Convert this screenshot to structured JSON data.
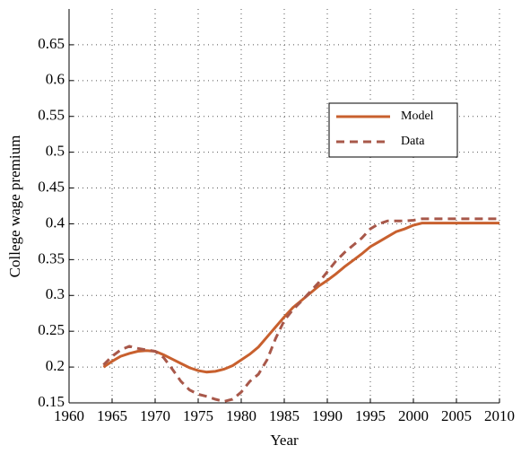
{
  "chart_data": {
    "type": "line",
    "x_label": "Year",
    "y_label": "College wage premium",
    "x": [
      1964,
      1965,
      1966,
      1967,
      1968,
      1969,
      1970,
      1971,
      1972,
      1973,
      1974,
      1975,
      1976,
      1977,
      1978,
      1979,
      1980,
      1981,
      1982,
      1983,
      1984,
      1985,
      1986,
      1987,
      1988,
      1989,
      1990,
      1991,
      1992,
      1993,
      1994,
      1995,
      1996,
      1997,
      1998,
      1999,
      2000,
      2001,
      2002,
      2003,
      2004,
      2005,
      2006,
      2007,
      2008,
      2009,
      2010
    ],
    "series": [
      {
        "name": "Model",
        "color": "#c8602e",
        "line_style": "solid",
        "values": [
          0.2,
          0.208,
          0.215,
          0.219,
          0.222,
          0.223,
          0.222,
          0.217,
          0.211,
          0.205,
          0.199,
          0.195,
          0.193,
          0.194,
          0.197,
          0.202,
          0.21,
          0.218,
          0.228,
          0.242,
          0.256,
          0.27,
          0.283,
          0.293,
          0.303,
          0.313,
          0.321,
          0.33,
          0.34,
          0.349,
          0.358,
          0.368,
          0.375,
          0.382,
          0.389,
          0.393,
          0.398,
          0.401,
          0.401,
          0.401,
          0.401,
          0.401,
          0.401,
          0.401,
          0.401,
          0.401,
          0.401
        ]
      },
      {
        "name": "Data",
        "color": "#a8584a",
        "line_style": "dashed",
        "values": [
          0.203,
          0.215,
          0.224,
          0.229,
          0.226,
          0.224,
          0.222,
          0.213,
          0.197,
          0.18,
          0.168,
          0.162,
          0.159,
          0.155,
          0.152,
          0.155,
          0.165,
          0.18,
          0.19,
          0.21,
          0.24,
          0.265,
          0.28,
          0.292,
          0.305,
          0.318,
          0.333,
          0.348,
          0.36,
          0.37,
          0.38,
          0.393,
          0.4,
          0.404,
          0.404,
          0.404,
          0.405,
          0.407,
          0.407,
          0.407,
          0.407,
          0.407,
          0.407,
          0.407,
          0.407,
          0.407,
          0.407
        ]
      }
    ],
    "xlim": [
      1960,
      2010
    ],
    "xticks": [
      1960,
      1965,
      1970,
      1975,
      1980,
      1985,
      1990,
      1995,
      2000,
      2005,
      2010
    ],
    "ylim": [
      0.15,
      0.7
    ],
    "yticks": [
      0.15,
      0.2,
      0.25,
      0.3,
      0.35,
      0.4,
      0.45,
      0.5,
      0.55,
      0.6,
      0.65
    ],
    "grid": true,
    "legend": "right"
  }
}
